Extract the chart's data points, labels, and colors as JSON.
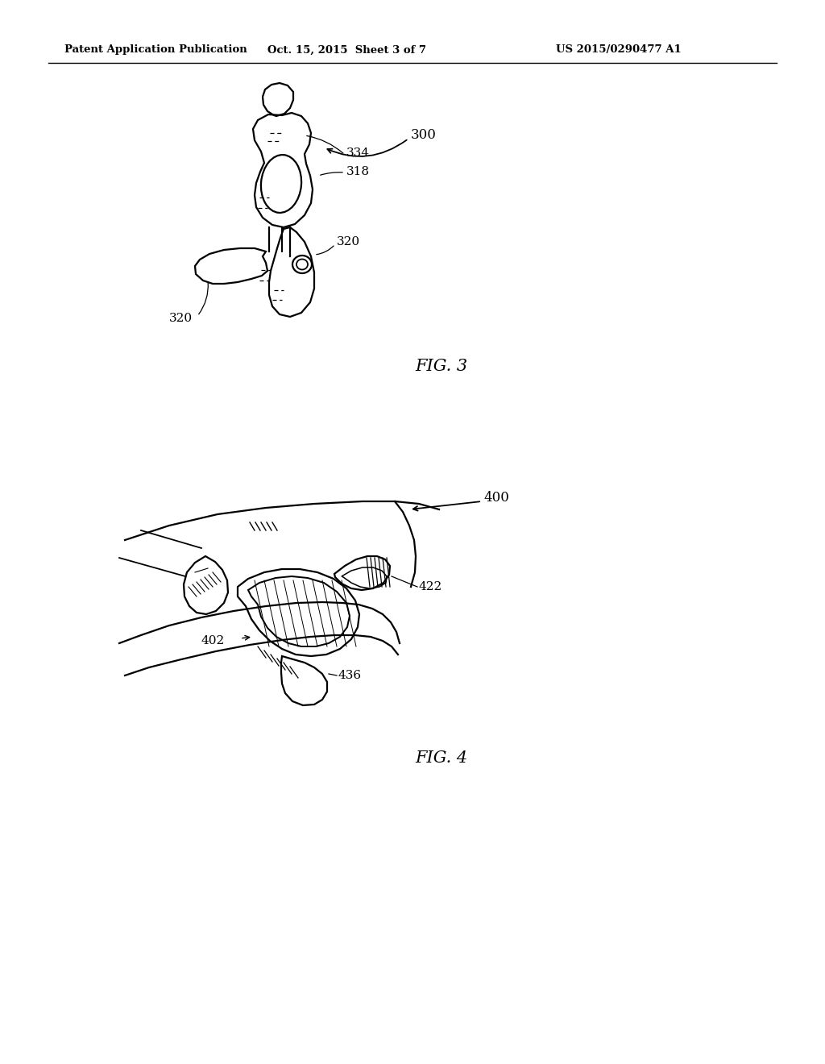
{
  "bg_color": "#ffffff",
  "line_color": "#000000",
  "header": {
    "left": "Patent Application Publication",
    "center": "Oct. 15, 2015  Sheet 3 of 7",
    "right": "US 2015/0290477 A1"
  },
  "fig3": {
    "label": "FIG. 3",
    "ref_number": "300",
    "label_334": "334",
    "label_318": "318",
    "label_320a": "320",
    "label_320b": "320"
  },
  "fig4": {
    "label": "FIG. 4",
    "ref_number": "400",
    "label_422": "422",
    "label_402": "402",
    "label_436": "436"
  }
}
